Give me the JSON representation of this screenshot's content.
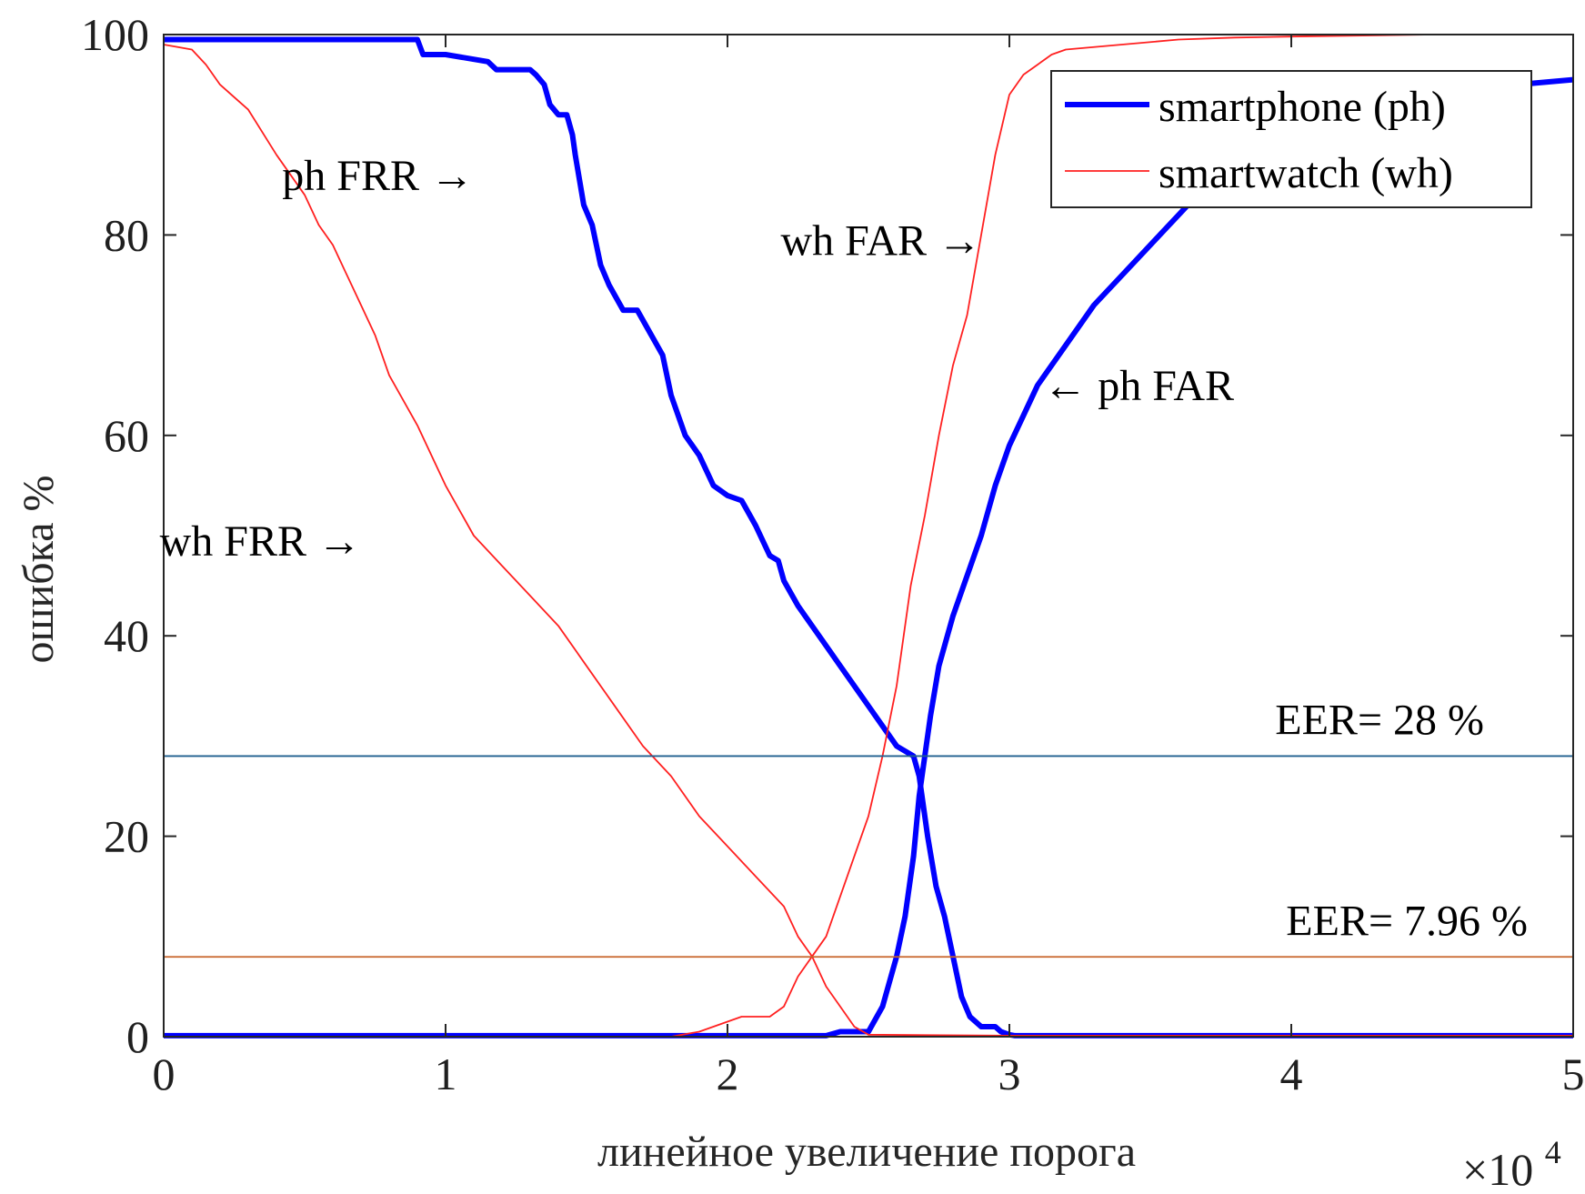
{
  "chart_data": {
    "type": "line",
    "xlabel": "линейное увеличение порога",
    "ylabel": "ошибка %",
    "x_multiplier": "×10",
    "x_multiplier_exp": "4",
    "xlim": [
      0,
      50000
    ],
    "ylim": [
      0,
      100
    ],
    "xticks": [
      0,
      10000,
      20000,
      30000,
      40000,
      50000
    ],
    "xtick_labels": [
      "0",
      "1",
      "2",
      "3",
      "4",
      "5"
    ],
    "yticks": [
      0,
      20,
      40,
      60,
      80,
      100
    ],
    "ytick_labels": [
      "0",
      "20",
      "40",
      "60",
      "80",
      "100"
    ],
    "grid": false,
    "legend": {
      "placement": "top-right",
      "entries": [
        "smartphone (ph)",
        "smartwatch (wh)"
      ]
    },
    "series": [
      {
        "name": "smartphone (ph)",
        "role": "FRR",
        "color": "#0000ff",
        "x": [
          0,
          9000,
          9200,
          10000,
          11500,
          11800,
          12000,
          13000,
          13200,
          13500,
          13700,
          14000,
          14300,
          14500,
          14600,
          14900,
          15200,
          15500,
          15800,
          16300,
          16800,
          17200,
          17700,
          18000,
          18500,
          19000,
          19500,
          20000,
          20500,
          21000,
          21500,
          21800,
          22000,
          22500,
          23000,
          23500,
          24000,
          24500,
          25000,
          25500,
          26000,
          26300,
          26600,
          26800,
          27100,
          27400,
          27700,
          28000,
          28300,
          28600,
          29000,
          29500,
          29700,
          30000,
          30200,
          50000
        ],
        "y": [
          99.5,
          99.5,
          98,
          98,
          97.3,
          96.5,
          96.5,
          96.5,
          96,
          95,
          93,
          92,
          92,
          90,
          88,
          83,
          81,
          77,
          75,
          72.5,
          72.5,
          70.5,
          68,
          64,
          60,
          58,
          55,
          54,
          53.5,
          51,
          48,
          47.5,
          45.5,
          43,
          41,
          39,
          37,
          35,
          33,
          31,
          29,
          28.5,
          28,
          26,
          20,
          15,
          12,
          8,
          4,
          2,
          1,
          1,
          0.5,
          0.2,
          0.1,
          0.1
        ]
      },
      {
        "name": "smartphone (ph)",
        "role": "FAR",
        "color": "#0000ff",
        "x": [
          0,
          23500,
          24000,
          25000,
          25500,
          26000,
          26300,
          26600,
          26800,
          27000,
          27200,
          27500,
          27800,
          28000,
          28500,
          29000,
          29500,
          30000,
          30500,
          31000,
          32000,
          33000,
          34000,
          35000,
          36000,
          37000,
          38000,
          40000,
          43000,
          46000,
          48000,
          50000
        ],
        "y": [
          0.1,
          0.1,
          0.5,
          0.5,
          3,
          8,
          12,
          18,
          24,
          28,
          32,
          37,
          40,
          42,
          46,
          50,
          55,
          59,
          62,
          65,
          69,
          73,
          76,
          79,
          82,
          85,
          87,
          89.5,
          91.5,
          93.5,
          95,
          95.5
        ]
      },
      {
        "name": "smartwatch (wh)",
        "role": "FRR",
        "color": "#ff2020",
        "x": [
          0,
          1000,
          1500,
          2000,
          3000,
          4000,
          5000,
          5500,
          6000,
          6500,
          7000,
          7500,
          8000,
          9000,
          10000,
          11000,
          12000,
          13000,
          14000,
          15000,
          16000,
          17000,
          18000,
          19000,
          20000,
          21000,
          22000,
          22500,
          23000,
          23500,
          24000,
          24500,
          25000,
          30000,
          50000
        ],
        "y": [
          99,
          98.5,
          97,
          95,
          92.5,
          88,
          84,
          81,
          79,
          76,
          73,
          70,
          66,
          61,
          55,
          50,
          47,
          44,
          41,
          37,
          33,
          29,
          26,
          22,
          19,
          16,
          13,
          10,
          8,
          5,
          3,
          1,
          0.2,
          0.1,
          0.1
        ]
      },
      {
        "name": "smartwatch (wh)",
        "role": "FAR",
        "color": "#ff2020",
        "x": [
          0,
          18000,
          19000,
          20000,
          20500,
          21000,
          21500,
          22000,
          22500,
          23000,
          23500,
          24000,
          24500,
          25000,
          25500,
          26000,
          26500,
          27000,
          27500,
          28000,
          28500,
          29000,
          29500,
          30000,
          30500,
          31000,
          31500,
          32000,
          34000,
          36000,
          38000,
          40000,
          45000,
          50000
        ],
        "y": [
          0,
          0,
          0.5,
          1.5,
          2,
          2,
          2,
          3,
          6,
          8,
          10,
          14,
          18,
          22,
          28,
          35,
          45,
          52,
          60,
          67,
          72,
          80,
          88,
          94,
          96,
          97,
          98,
          98.5,
          99,
          99.5,
          99.7,
          99.8,
          100,
          100
        ]
      }
    ],
    "reference_lines": [
      {
        "label": "EER= 28 %",
        "value": 28,
        "color": "#1f5f8f"
      },
      {
        "label": "EER= 7.96 %",
        "value": 7.96,
        "color": "#c8642a"
      }
    ],
    "annotations": [
      {
        "text": "ph FRR →",
        "x": 11000,
        "y": 84.5
      },
      {
        "text": "wh FAR →",
        "x": 29000,
        "y": 78
      },
      {
        "text": "← ph FAR",
        "x": 31200,
        "y": 63.5
      },
      {
        "text": "wh FRR →",
        "x": 7000,
        "y": 48
      }
    ]
  }
}
